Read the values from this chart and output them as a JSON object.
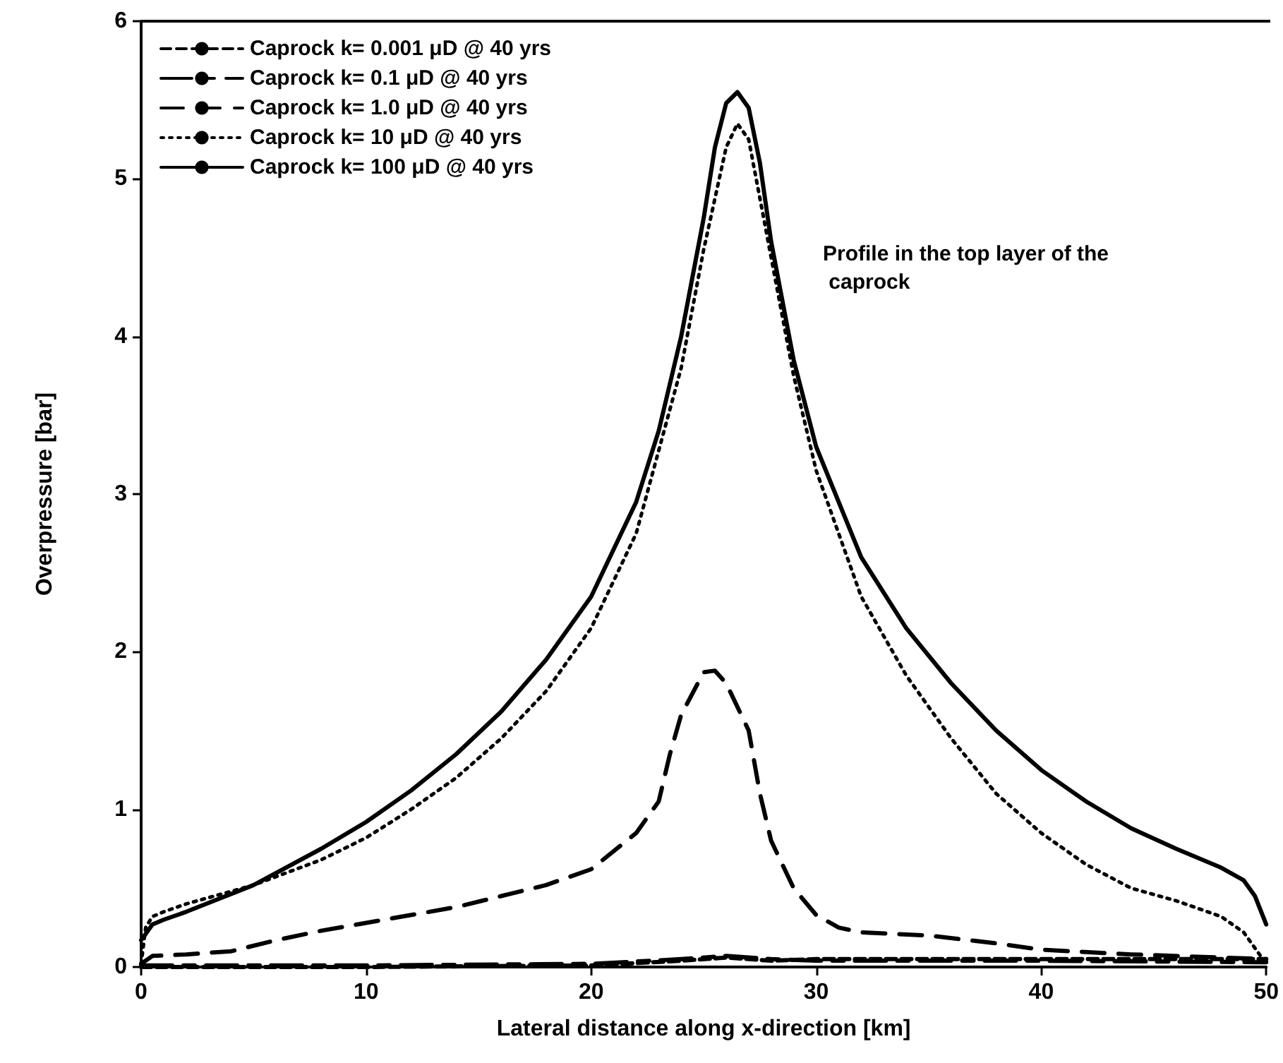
{
  "chart_data": {
    "type": "line",
    "xlabel": "Lateral distance along x-direction [km]",
    "ylabel": "Overpressure [bar]",
    "annotations": [
      "Profile in the top layer of the\n caprock"
    ],
    "xlim": [
      0,
      50
    ],
    "xticks": [
      0,
      10,
      20,
      30,
      40,
      50
    ],
    "ylim": [
      0,
      6
    ],
    "yticks": [
      0,
      1,
      2,
      3,
      4,
      5,
      6
    ],
    "grid": false,
    "legend": "top left",
    "marker": "none",
    "series": [
      {
        "name": "Caprock k= 0.001 μD @ 40 yrs",
        "color": "#000000",
        "line_style": "dashed",
        "x": [
          0,
          10,
          20,
          24,
          26,
          28,
          30,
          40,
          50
        ],
        "values": [
          0,
          0,
          0.01,
          0.04,
          0.06,
          0.04,
          0.05,
          0.05,
          0.05
        ]
      },
      {
        "name": "Caprock k= 0.1 μD @ 40 yrs",
        "color": "#000000",
        "line_style": "dashed",
        "x": [
          0,
          10,
          20,
          24,
          26,
          28,
          30,
          35,
          40,
          50
        ],
        "values": [
          0.01,
          0.01,
          0.02,
          0.05,
          0.07,
          0.05,
          0.04,
          0.04,
          0.04,
          0.03
        ]
      },
      {
        "name": "Caprock k= 1.0 μD @ 40 yrs",
        "color": "#000000",
        "line_style": "dashed",
        "x": [
          0,
          0.5,
          2,
          4,
          6,
          8,
          10,
          14,
          18,
          20,
          22,
          23,
          23.5,
          24,
          25,
          25.5,
          26,
          27,
          27.5,
          28,
          29,
          30,
          31,
          32,
          35,
          38,
          40,
          44,
          48,
          50
        ],
        "values": [
          0.02,
          0.07,
          0.08,
          0.1,
          0.17,
          0.23,
          0.28,
          0.38,
          0.52,
          0.62,
          0.85,
          1.05,
          1.35,
          1.6,
          1.87,
          1.88,
          1.8,
          1.5,
          1.1,
          0.8,
          0.5,
          0.33,
          0.25,
          0.22,
          0.2,
          0.15,
          0.11,
          0.08,
          0.06,
          0.05
        ]
      },
      {
        "name": "Caprock k= 10 μD @ 40 yrs",
        "color": "#000000",
        "line_style": "dotted",
        "x": [
          0,
          0.2,
          0.5,
          1,
          2,
          5,
          8,
          10,
          12,
          14,
          16,
          18,
          20,
          22,
          24,
          25,
          26,
          26.5,
          27,
          28,
          29,
          30,
          32,
          34,
          36,
          38,
          40,
          42,
          44,
          46,
          48,
          49,
          49.5,
          50
        ],
        "values": [
          0.02,
          0.25,
          0.32,
          0.35,
          0.4,
          0.52,
          0.68,
          0.82,
          1.0,
          1.2,
          1.45,
          1.75,
          2.15,
          2.75,
          3.8,
          4.55,
          5.2,
          5.35,
          5.25,
          4.5,
          3.75,
          3.15,
          2.35,
          1.85,
          1.45,
          1.1,
          0.85,
          0.65,
          0.5,
          0.42,
          0.32,
          0.22,
          0.12,
          0.02
        ]
      },
      {
        "name": "Caprock k= 100 μD @ 40 yrs",
        "color": "#000000",
        "line_style": "solid",
        "x": [
          0,
          0.5,
          1,
          2,
          5,
          8,
          10,
          12,
          14,
          16,
          18,
          20,
          22,
          23,
          24,
          25,
          25.5,
          26,
          26.5,
          27,
          27.5,
          28,
          29,
          30,
          32,
          34,
          36,
          38,
          40,
          42,
          44,
          46,
          48,
          49,
          49.5,
          50
        ],
        "values": [
          0.17,
          0.27,
          0.3,
          0.35,
          0.52,
          0.75,
          0.92,
          1.12,
          1.35,
          1.62,
          1.95,
          2.35,
          2.95,
          3.4,
          4.0,
          4.75,
          5.2,
          5.48,
          5.55,
          5.45,
          5.1,
          4.6,
          3.85,
          3.3,
          2.6,
          2.15,
          1.8,
          1.5,
          1.25,
          1.05,
          0.88,
          0.75,
          0.63,
          0.55,
          0.45,
          0.27
        ]
      }
    ]
  }
}
